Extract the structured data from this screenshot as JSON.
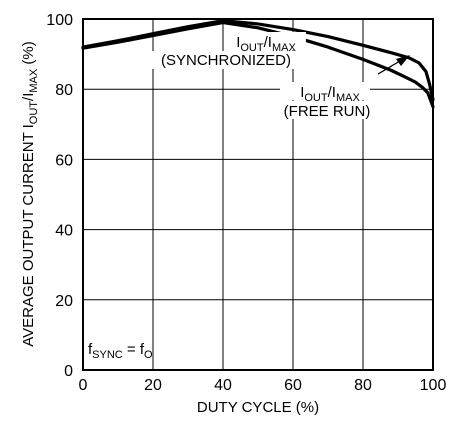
{
  "chart_data": {
    "type": "line",
    "xlabel": "DUTY CYCLE (%)",
    "ylabel": {
      "main": "AVERAGE OUTPUT CURRENT I",
      "sub1": "OUT",
      "mid": "/I",
      "sub2": "MAX",
      "tail": " (%)"
    },
    "xlim": [
      0,
      100
    ],
    "ylim": [
      0,
      100
    ],
    "xticks": [
      "0",
      "20",
      "40",
      "60",
      "80",
      "100"
    ],
    "yticks": [
      "0",
      "20",
      "40",
      "60",
      "80",
      "100"
    ],
    "grid": true,
    "series": [
      {
        "name": "IOUT/IMAX (SYNCHRONIZED)",
        "x": [
          0,
          10,
          20,
          30,
          40,
          50,
          60,
          70,
          80,
          88,
          93,
          96,
          98,
          99,
          100
        ],
        "y": [
          92,
          93.8,
          95.8,
          97.8,
          99.5,
          98.6,
          97,
          95,
          92.5,
          90.4,
          89,
          87.5,
          85,
          81.5,
          77
        ]
      },
      {
        "name": "IOUT/IMAX (FREE RUN)",
        "x": [
          0,
          10,
          20,
          30,
          40,
          50,
          60,
          70,
          80,
          88,
          92,
          95,
          97,
          98.5,
          100
        ],
        "y": [
          91.7,
          93.4,
          95.3,
          97.2,
          99.0,
          97.5,
          95,
          92,
          88.5,
          85.4,
          83.5,
          82,
          80.5,
          79,
          75
        ]
      }
    ],
    "annotations": {
      "sync": {
        "line1_main": "I",
        "line1_sub1": "OUT",
        "line1_mid": "/I",
        "line1_sub2": "MAX",
        "line2": "(SYNCHRONIZED)"
      },
      "free": {
        "line1_main": "I",
        "line1_sub1": "OUT",
        "line1_mid": "/I",
        "line1_sub2": "MAX",
        "line2": "(FREE RUN)"
      },
      "fsync": {
        "main": "f",
        "sub1": "SYNC",
        "eq": " = f",
        "sub2": "O"
      }
    }
  }
}
